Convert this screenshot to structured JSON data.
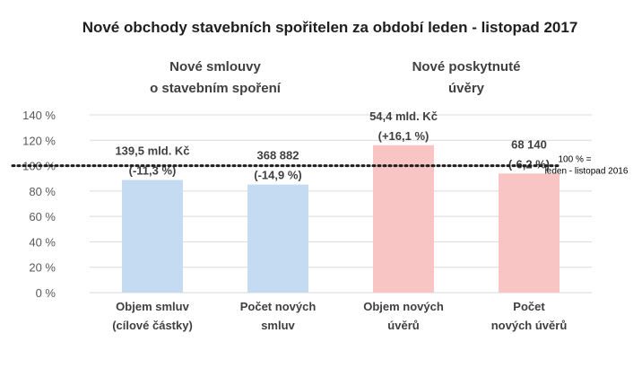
{
  "chart_data": {
    "type": "bar",
    "title": "Nové obchody stavebních spořitelen za období leden - listopad 2017",
    "groups": [
      {
        "label_lines": [
          "Nové smlouvy",
          "o stavebním spoření"
        ],
        "categories": [
          0,
          1
        ]
      },
      {
        "label_lines": [
          "Nové poskytnuté",
          "úvěry"
        ],
        "categories": [
          2,
          3
        ]
      }
    ],
    "categories": [
      [
        "Objem smluv",
        "(cílové částky)"
      ],
      [
        "Počet  nových",
        "smluv"
      ],
      [
        "Objem nových",
        "úvěrů"
      ],
      [
        "Počet",
        "nových úvěrů"
      ]
    ],
    "values": [
      88.7,
      85.1,
      116.1,
      93.8
    ],
    "bar_colors": [
      "#c5dbf2",
      "#c5dbf2",
      "#f8c4c4",
      "#f8c4c4"
    ],
    "data_labels": [
      [
        "139,5 mld. Kč",
        "(-11,3 %)"
      ],
      [
        "368 882",
        "(-14,9 %)"
      ],
      [
        "54,4 mld. Kč",
        "(+16,1 %)"
      ],
      [
        "68 140",
        "(-6,2 %)"
      ]
    ],
    "ylim": [
      0,
      140
    ],
    "y_ticks": [
      0,
      20,
      40,
      60,
      80,
      100,
      120,
      140
    ],
    "y_tick_labels": [
      "0 %",
      "20 %",
      "40 %",
      "60 %",
      "80 %",
      "100 %",
      "120 %",
      "140 %"
    ],
    "grid": true,
    "reference_line": {
      "value": 100,
      "style": "dotted",
      "label_lines": [
        "100 % =",
        "leden - listopad  2016"
      ]
    },
    "xlabel": "",
    "ylabel": ""
  }
}
